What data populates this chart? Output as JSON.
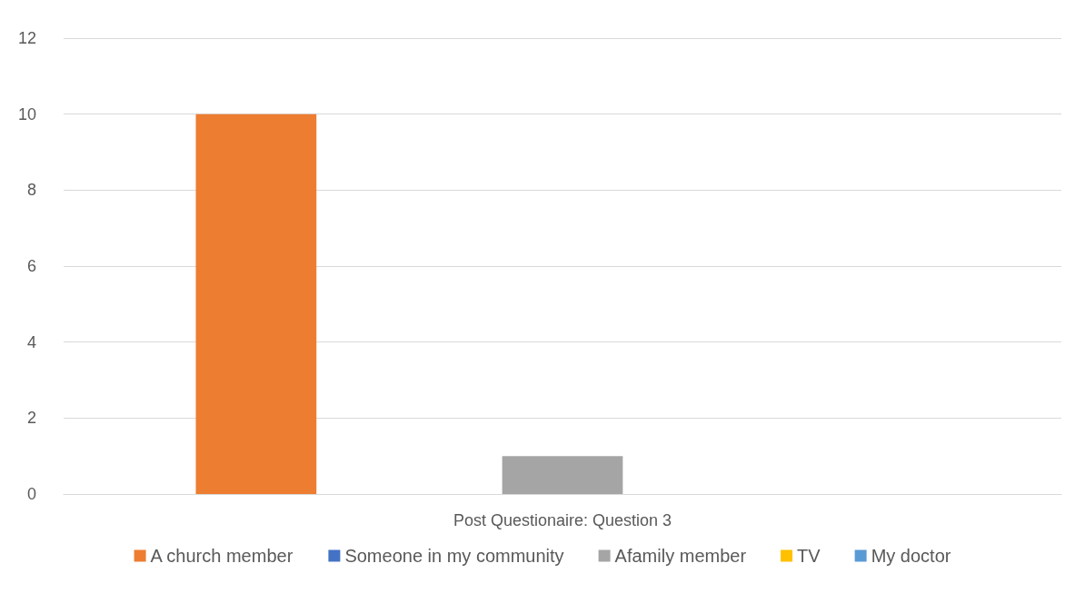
{
  "chart_data": {
    "type": "bar",
    "categories": [
      "Post Questionaire: Question 3"
    ],
    "series": [
      {
        "name": "A church member",
        "color": "#ed7d31",
        "values": [
          10
        ]
      },
      {
        "name": "Someone in my community",
        "color": "#4472c4",
        "values": [
          0
        ]
      },
      {
        "name": "Afamily member",
        "color": "#a5a5a5",
        "values": [
          1
        ]
      },
      {
        "name": "TV",
        "color": "#ffc000",
        "values": [
          0
        ]
      },
      {
        "name": "My doctor",
        "color": "#5b9bd5",
        "values": [
          0
        ]
      }
    ],
    "ylim": [
      0,
      12
    ],
    "yticks": [
      0,
      2,
      4,
      6,
      8,
      10,
      12
    ],
    "grid": true,
    "legend": "bottom"
  }
}
